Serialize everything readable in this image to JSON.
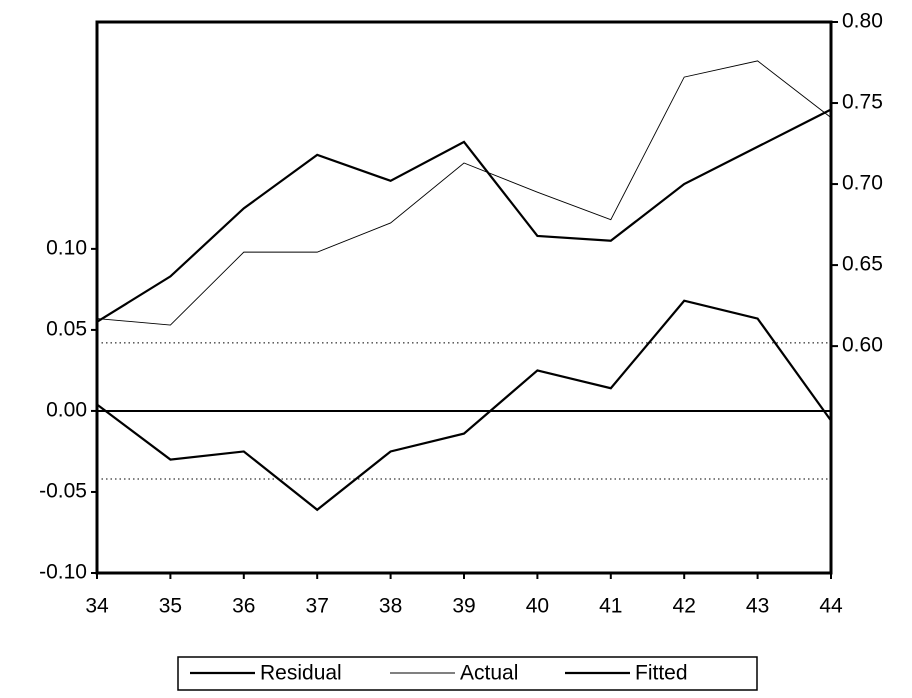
{
  "chart_data": {
    "type": "line",
    "x": [
      34,
      35,
      36,
      37,
      38,
      39,
      40,
      41,
      42,
      43,
      44
    ],
    "xlim": [
      34,
      44
    ],
    "xticks": [
      34,
      35,
      36,
      37,
      38,
      39,
      40,
      41,
      42,
      43,
      44
    ],
    "ylim": [
      -0.1,
      0.24
    ],
    "yticks": [
      {
        "value": -0.1,
        "label": "-0.10"
      },
      -0.05,
      {
        "value": 0.0,
        "label": "0.00"
      },
      0.05,
      {
        "value": 0.1,
        "label": "0.10"
      }
    ],
    "y2lim": [
      0.46,
      0.8
    ],
    "y2ticks": [
      {
        "value": 0.6,
        "label": "0.60"
      },
      0.65,
      {
        "value": 0.7,
        "label": "0.70"
      },
      0.75,
      {
        "value": 0.8,
        "label": "0.80"
      }
    ],
    "reference_lines": [
      -0.042,
      0.042
    ],
    "legend": "bottom",
    "series": [
      {
        "name": "Residual",
        "color": "#000000",
        "line_width": 2.2,
        "values": [
          0.004,
          -0.03,
          -0.025,
          -0.061,
          -0.025,
          -0.014,
          0.025,
          0.014,
          0.068,
          0.057,
          -0.006
        ]
      },
      {
        "name": "Actual",
        "color": "#000000",
        "line_width": 0.9,
        "axis": "y2",
        "values": [
          0.617,
          0.613,
          0.658,
          0.658,
          0.676,
          0.713,
          0.695,
          0.678,
          0.766,
          0.776,
          0.741
        ]
      },
      {
        "name": "Fitted",
        "color": "#000000",
        "line_width": 2.2,
        "axis": "y2",
        "values": [
          0.615,
          0.643,
          0.685,
          0.718,
          0.702,
          0.726,
          0.668,
          0.665,
          0.7,
          0.723,
          0.746
        ]
      }
    ]
  }
}
